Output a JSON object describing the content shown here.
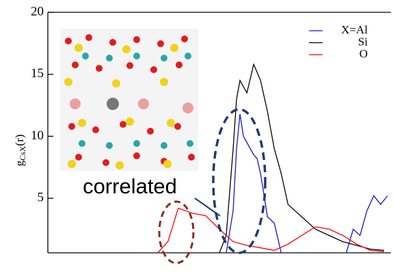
{
  "chart_data": {
    "type": "line",
    "ylabel": {
      "main": "g",
      "sub": "CsX",
      "rest": "(r)"
    },
    "annotation": "correlated",
    "xlim": [
      0,
      100
    ],
    "ylim": [
      0.6,
      20
    ],
    "yticks": [
      5,
      10,
      15,
      20
    ],
    "series": [
      {
        "name": "X=Al",
        "color": "#1010e0",
        "x": [
          52,
          54,
          55,
          56,
          57,
          58,
          60,
          61,
          62,
          64,
          66,
          68,
          78,
          87,
          89,
          91,
          93,
          95,
          97,
          99
        ],
        "values": [
          0.6,
          4,
          9,
          11.8,
          10,
          9.5,
          8.5,
          8.2,
          7,
          3.5,
          3,
          0.6,
          null,
          0.6,
          2.5,
          2,
          4,
          5.2,
          4.5,
          5.2
        ]
      },
      {
        "name": "Si",
        "color": "#000000",
        "x": [
          50,
          52,
          54,
          55,
          56,
          58,
          60,
          62,
          64,
          66,
          68,
          70,
          74,
          78,
          82,
          86,
          90,
          94,
          98
        ],
        "values": [
          0.6,
          2,
          9,
          13,
          14.5,
          13.5,
          15.8,
          14.5,
          12,
          9,
          7,
          4.5,
          3.5,
          2.5,
          2.0,
          1.5,
          1.2,
          0.9,
          0.8
        ]
      },
      {
        "name": "O",
        "color": "#ff0000",
        "x": [
          32,
          35,
          38,
          42,
          46,
          50,
          54,
          58,
          62,
          66,
          70,
          74,
          78,
          82,
          86,
          90,
          94,
          98
        ],
        "values": [
          0.6,
          1.5,
          4.2,
          3.8,
          3.6,
          2.5,
          1.5,
          1.2,
          1.0,
          0.8,
          1.3,
          2.0,
          2.7,
          2.5,
          2.0,
          1.3,
          0.8,
          0.7
        ]
      }
    ]
  }
}
